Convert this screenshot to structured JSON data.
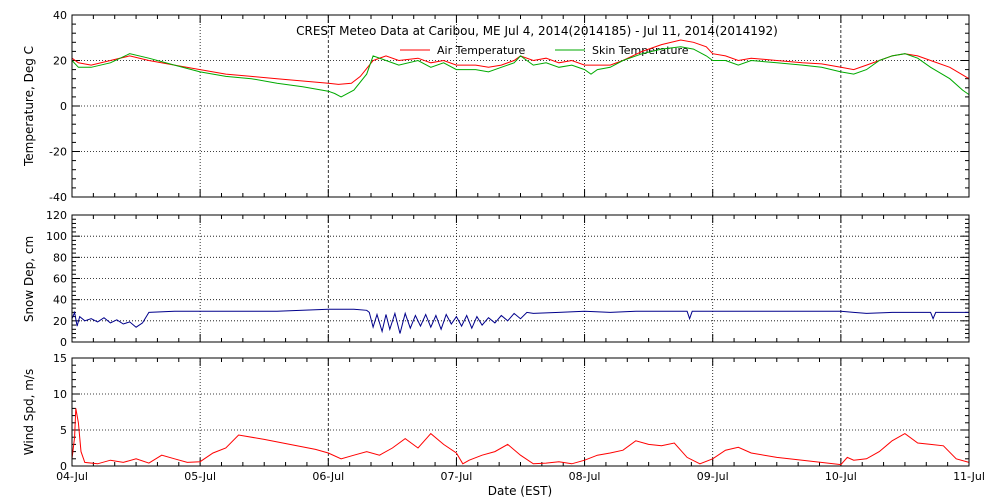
{
  "chart_data": [
    {
      "type": "line",
      "title": "CREST Meteo Data at Caribou, ME   Jul  4, 2014(2014185) - Jul 11, 2014(2014192)",
      "xlabel": "",
      "ylabel": "Temperature, Deg C",
      "xlim": [
        0,
        7
      ],
      "ylim": [
        -40,
        40
      ],
      "yticks": [
        -40,
        -20,
        0,
        20,
        40
      ],
      "grid": true,
      "legend_position": "top-right",
      "series": [
        {
          "name": "Air Temperature",
          "color": "#ff0000",
          "points": [
            [
              0,
              21
            ],
            [
              0.05,
              19
            ],
            [
              0.15,
              18
            ],
            [
              0.3,
              20
            ],
            [
              0.45,
              22
            ],
            [
              0.6,
              20
            ],
            [
              0.8,
              18
            ],
            [
              1,
              16
            ],
            [
              1.2,
              14
            ],
            [
              1.4,
              13
            ],
            [
              1.6,
              12
            ],
            [
              1.8,
              11
            ],
            [
              2,
              10
            ],
            [
              2.08,
              9.5
            ],
            [
              2.18,
              10
            ],
            [
              2.25,
              13
            ],
            [
              2.35,
              20
            ],
            [
              2.45,
              22
            ],
            [
              2.55,
              20
            ],
            [
              2.7,
              21
            ],
            [
              2.8,
              19
            ],
            [
              2.9,
              20
            ],
            [
              3,
              18
            ],
            [
              3.15,
              18
            ],
            [
              3.25,
              17
            ],
            [
              3.35,
              18
            ],
            [
              3.45,
              20
            ],
            [
              3.5,
              22
            ],
            [
              3.6,
              20
            ],
            [
              3.7,
              21
            ],
            [
              3.8,
              19
            ],
            [
              3.9,
              20
            ],
            [
              4,
              18
            ],
            [
              4.1,
              18
            ],
            [
              4.2,
              18
            ],
            [
              4.3,
              20
            ],
            [
              4.45,
              24
            ],
            [
              4.6,
              27
            ],
            [
              4.75,
              29
            ],
            [
              4.85,
              28
            ],
            [
              4.95,
              26
            ],
            [
              5,
              23
            ],
            [
              5.1,
              22
            ],
            [
              5.2,
              20
            ],
            [
              5.3,
              21
            ],
            [
              5.5,
              20
            ],
            [
              5.7,
              19
            ],
            [
              5.85,
              18.5
            ],
            [
              6,
              17
            ],
            [
              6.1,
              16
            ],
            [
              6.2,
              18
            ],
            [
              6.3,
              20
            ],
            [
              6.4,
              22
            ],
            [
              6.5,
              23
            ],
            [
              6.6,
              22
            ],
            [
              6.7,
              20
            ],
            [
              6.85,
              17
            ],
            [
              7,
              12
            ]
          ]
        },
        {
          "name": "Skin Temperature",
          "color": "#00aa00",
          "points": [
            [
              0,
              20
            ],
            [
              0.05,
              17
            ],
            [
              0.15,
              17
            ],
            [
              0.3,
              19
            ],
            [
              0.45,
              23
            ],
            [
              0.6,
              21
            ],
            [
              0.8,
              18
            ],
            [
              1,
              15
            ],
            [
              1.2,
              13
            ],
            [
              1.4,
              12
            ],
            [
              1.6,
              10
            ],
            [
              1.8,
              8.5
            ],
            [
              2,
              6.5
            ],
            [
              2.05,
              5.5
            ],
            [
              2.1,
              4
            ],
            [
              2.2,
              7
            ],
            [
              2.3,
              14
            ],
            [
              2.35,
              22
            ],
            [
              2.45,
              20
            ],
            [
              2.55,
              18
            ],
            [
              2.7,
              20
            ],
            [
              2.8,
              17
            ],
            [
              2.9,
              19
            ],
            [
              3,
              16
            ],
            [
              3.15,
              16
            ],
            [
              3.25,
              15
            ],
            [
              3.35,
              17
            ],
            [
              3.45,
              19
            ],
            [
              3.5,
              22
            ],
            [
              3.6,
              18
            ],
            [
              3.7,
              19
            ],
            [
              3.8,
              17
            ],
            [
              3.9,
              18
            ],
            [
              4,
              16
            ],
            [
              4.05,
              14
            ],
            [
              4.1,
              16
            ],
            [
              4.2,
              17
            ],
            [
              4.3,
              20
            ],
            [
              4.45,
              23
            ],
            [
              4.6,
              25
            ],
            [
              4.75,
              26
            ],
            [
              4.85,
              25
            ],
            [
              4.95,
              22
            ],
            [
              5,
              20
            ],
            [
              5.1,
              20
            ],
            [
              5.2,
              18
            ],
            [
              5.3,
              20
            ],
            [
              5.5,
              19
            ],
            [
              5.7,
              18
            ],
            [
              5.85,
              17
            ],
            [
              6,
              15
            ],
            [
              6.1,
              14
            ],
            [
              6.2,
              16
            ],
            [
              6.3,
              20
            ],
            [
              6.4,
              22
            ],
            [
              6.5,
              23
            ],
            [
              6.6,
              21
            ],
            [
              6.7,
              17
            ],
            [
              6.85,
              12
            ],
            [
              6.95,
              7
            ],
            [
              7,
              5
            ]
          ]
        }
      ]
    },
    {
      "type": "line",
      "ylabel": "Snow Dep, cm",
      "xlim": [
        0,
        7
      ],
      "ylim": [
        0,
        120
      ],
      "yticks": [
        0,
        20,
        40,
        60,
        80,
        100,
        120
      ],
      "grid": true,
      "series": [
        {
          "name": "",
          "color": "#00008b",
          "points": [
            [
              0,
              22
            ],
            [
              0.02,
              28
            ],
            [
              0.04,
              15
            ],
            [
              0.06,
              24
            ],
            [
              0.1,
              20
            ],
            [
              0.15,
              22
            ],
            [
              0.2,
              19
            ],
            [
              0.25,
              23
            ],
            [
              0.3,
              18
            ],
            [
              0.35,
              21
            ],
            [
              0.4,
              17
            ],
            [
              0.45,
              19
            ],
            [
              0.5,
              14
            ],
            [
              0.55,
              18
            ],
            [
              0.6,
              28
            ],
            [
              0.8,
              29
            ],
            [
              1,
              29
            ],
            [
              1.2,
              29
            ],
            [
              1.4,
              29
            ],
            [
              1.6,
              29
            ],
            [
              1.8,
              30
            ],
            [
              2,
              31
            ],
            [
              2.2,
              31
            ],
            [
              2.3,
              30
            ],
            [
              2.32,
              28
            ],
            [
              2.35,
              14
            ],
            [
              2.38,
              26
            ],
            [
              2.42,
              10
            ],
            [
              2.45,
              26
            ],
            [
              2.48,
              12
            ],
            [
              2.52,
              27
            ],
            [
              2.56,
              8
            ],
            [
              2.6,
              27
            ],
            [
              2.64,
              13
            ],
            [
              2.68,
              25
            ],
            [
              2.72,
              15
            ],
            [
              2.76,
              26
            ],
            [
              2.8,
              14
            ],
            [
              2.84,
              25
            ],
            [
              2.88,
              12
            ],
            [
              2.92,
              26
            ],
            [
              2.96,
              17
            ],
            [
              3,
              24
            ],
            [
              3.04,
              15
            ],
            [
              3.08,
              25
            ],
            [
              3.12,
              13
            ],
            [
              3.16,
              24
            ],
            [
              3.2,
              16
            ],
            [
              3.25,
              23
            ],
            [
              3.3,
              18
            ],
            [
              3.35,
              25
            ],
            [
              3.4,
              20
            ],
            [
              3.45,
              27
            ],
            [
              3.5,
              22
            ],
            [
              3.55,
              28
            ],
            [
              3.6,
              27
            ],
            [
              3.8,
              28
            ],
            [
              4,
              29
            ],
            [
              4.2,
              28
            ],
            [
              4.4,
              29
            ],
            [
              4.6,
              29
            ],
            [
              4.8,
              29
            ],
            [
              4.82,
              22
            ],
            [
              4.84,
              29
            ],
            [
              5,
              29
            ],
            [
              5.2,
              29
            ],
            [
              5.4,
              29
            ],
            [
              5.6,
              29
            ],
            [
              5.8,
              29
            ],
            [
              6,
              29
            ],
            [
              6.1,
              28
            ],
            [
              6.2,
              27
            ],
            [
              6.4,
              28
            ],
            [
              6.6,
              28
            ],
            [
              6.7,
              28
            ],
            [
              6.72,
              22
            ],
            [
              6.74,
              28
            ],
            [
              6.9,
              28
            ],
            [
              7,
              28
            ]
          ]
        }
      ]
    },
    {
      "type": "line",
      "ylabel": "Wind Spd, m/s",
      "xlabel": "Date (EST)",
      "xlim": [
        0,
        7
      ],
      "ylim": [
        0,
        15
      ],
      "yticks": [
        0,
        5,
        10,
        15
      ],
      "xtick_labels": [
        "04-Jul",
        "05-Jul",
        "06-Jul",
        "07-Jul",
        "08-Jul",
        "09-Jul",
        "10-Jul",
        "11-Jul"
      ],
      "grid": true,
      "series": [
        {
          "name": "",
          "color": "#ff0000",
          "points": [
            [
              0,
              1
            ],
            [
              0.02,
              4
            ],
            [
              0.03,
              8
            ],
            [
              0.05,
              6
            ],
            [
              0.07,
              2
            ],
            [
              0.1,
              0.5
            ],
            [
              0.2,
              0.3
            ],
            [
              0.3,
              0.8
            ],
            [
              0.4,
              0.5
            ],
            [
              0.5,
              1
            ],
            [
              0.6,
              0.4
            ],
            [
              0.7,
              1.5
            ],
            [
              0.8,
              1
            ],
            [
              0.9,
              0.5
            ],
            [
              1,
              0.6
            ],
            [
              1.1,
              1.8
            ],
            [
              1.2,
              2.5
            ],
            [
              1.3,
              4.3
            ],
            [
              1.5,
              3.7
            ],
            [
              1.7,
              3
            ],
            [
              1.9,
              2.3
            ],
            [
              2,
              1.8
            ],
            [
              2.1,
              1
            ],
            [
              2.2,
              1.5
            ],
            [
              2.3,
              2
            ],
            [
              2.4,
              1.5
            ],
            [
              2.5,
              2.5
            ],
            [
              2.6,
              3.8
            ],
            [
              2.7,
              2.5
            ],
            [
              2.8,
              4.5
            ],
            [
              2.9,
              3
            ],
            [
              3,
              1.8
            ],
            [
              3.05,
              0.3
            ],
            [
              3.1,
              0.8
            ],
            [
              3.2,
              1.5
            ],
            [
              3.3,
              2
            ],
            [
              3.4,
              3
            ],
            [
              3.5,
              1.5
            ],
            [
              3.6,
              0.3
            ],
            [
              3.7,
              0.4
            ],
            [
              3.8,
              0.6
            ],
            [
              3.9,
              0.3
            ],
            [
              4,
              0.8
            ],
            [
              4.1,
              1.5
            ],
            [
              4.2,
              1.8
            ],
            [
              4.3,
              2.2
            ],
            [
              4.4,
              3.5
            ],
            [
              4.5,
              3
            ],
            [
              4.6,
              2.8
            ],
            [
              4.7,
              3.2
            ],
            [
              4.8,
              1.2
            ],
            [
              4.9,
              0.3
            ],
            [
              5,
              1
            ],
            [
              5.1,
              2.2
            ],
            [
              5.2,
              2.6
            ],
            [
              5.3,
              1.8
            ],
            [
              5.5,
              1.2
            ],
            [
              5.7,
              0.8
            ],
            [
              6,
              0.2
            ],
            [
              6.05,
              1.2
            ],
            [
              6.1,
              0.8
            ],
            [
              6.2,
              1
            ],
            [
              6.3,
              2
            ],
            [
              6.4,
              3.5
            ],
            [
              6.5,
              4.5
            ],
            [
              6.6,
              3.2
            ],
            [
              6.7,
              3
            ],
            [
              6.8,
              2.8
            ],
            [
              6.9,
              1
            ],
            [
              7,
              0.5
            ]
          ]
        }
      ]
    }
  ]
}
